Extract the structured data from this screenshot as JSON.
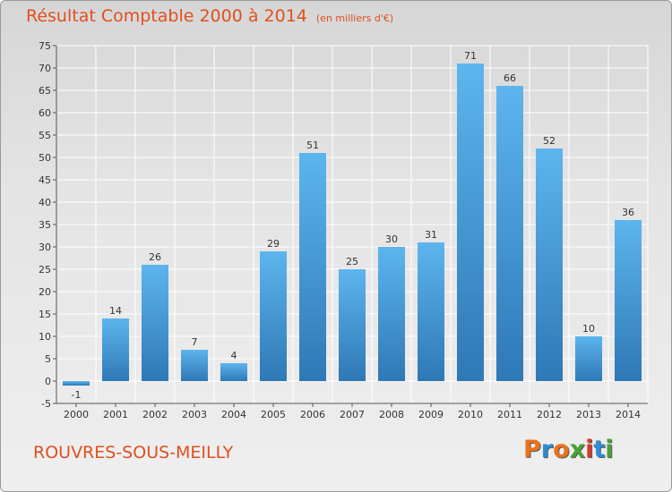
{
  "header": {
    "title": "Résultat Comptable 2000 à 2014",
    "subtitle": "(en milliers d'€)"
  },
  "footer": {
    "commune": "ROUVRES-SOUS-MEILLY",
    "logo_text": "Proxiti"
  },
  "colors": {
    "title": "#e0501e",
    "bar_top": "#5db5ee",
    "bar_bottom": "#2e78b6",
    "grid": "#ffffff",
    "logo_letters": [
      "#e8731c",
      "#2d8cd4",
      "#e8731c",
      "#49a337",
      "#d63a2a",
      "#2d8cd4",
      "#49a337"
    ]
  },
  "chart_data": {
    "type": "bar",
    "title": "Résultat Comptable 2000 à 2014",
    "subtitle": "(en milliers d'€)",
    "categories": [
      "2000",
      "2001",
      "2002",
      "2003",
      "2004",
      "2005",
      "2006",
      "2007",
      "2008",
      "2009",
      "2010",
      "2011",
      "2012",
      "2013",
      "2014"
    ],
    "values": [
      -1,
      14,
      26,
      7,
      4,
      29,
      51,
      25,
      30,
      31,
      71,
      66,
      52,
      10,
      36
    ],
    "ylim": [
      -5,
      75
    ],
    "yticks": [
      -5,
      0,
      5,
      10,
      15,
      20,
      25,
      30,
      35,
      40,
      45,
      50,
      55,
      60,
      65,
      70,
      75
    ],
    "grid": true,
    "legend": "none"
  }
}
